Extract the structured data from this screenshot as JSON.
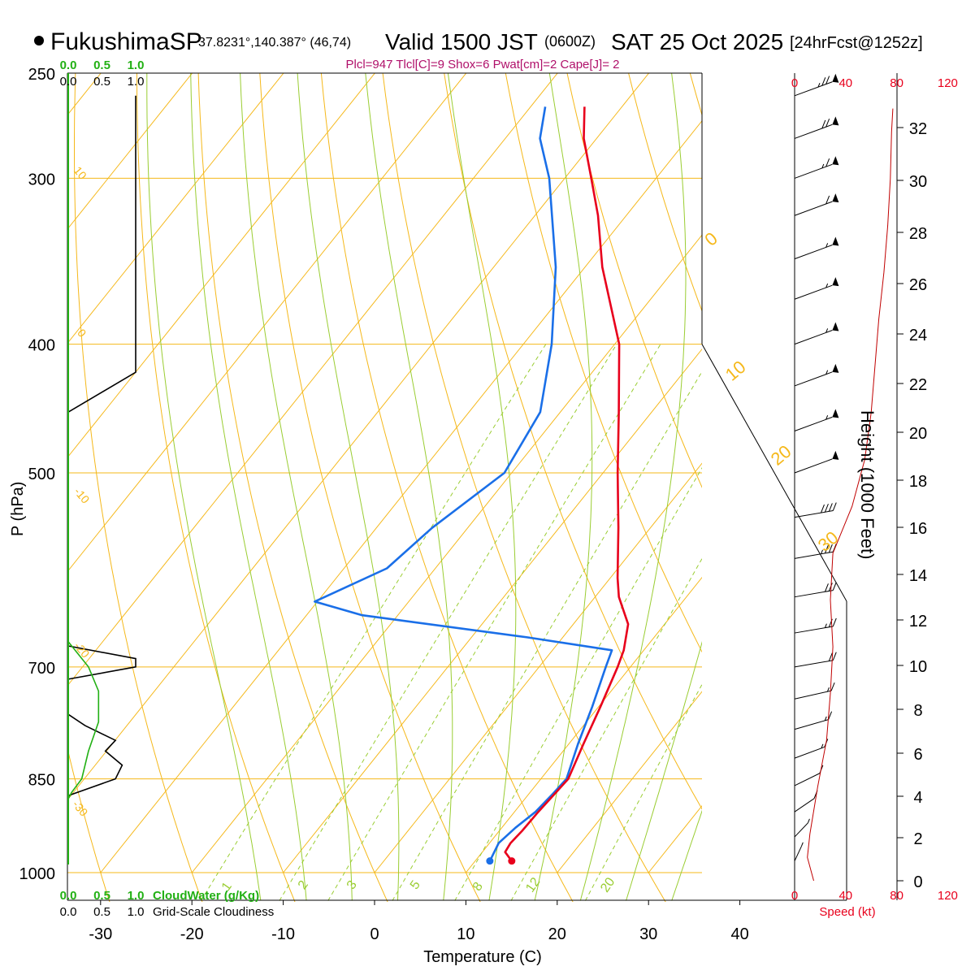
{
  "header": {
    "station": "FukushimaSP",
    "coords": "37.8231°,140.387° (46,74)",
    "valid_label": "Valid 1500 JST",
    "valid_utc": "(0600Z)",
    "date": "SAT 25 Oct 2025",
    "forecast": "[24hrFcst@1252z]",
    "indices": "Plcl=947 Tlcl[C]=9 Shox=6 Pwat[cm]=2 Cape[J]= 2"
  },
  "chart_data": {
    "type": "line",
    "title": "FukushimaSP Valid 1500 JST (0600Z) SAT 25 Oct 2025",
    "xlabel": "Temperature (C)",
    "ylabel": "P (hPa)",
    "right_ylabel": "Height (1000 Feet)",
    "x_ticks": [
      "-30",
      "-20",
      "-10",
      "0",
      "10",
      "20",
      "30",
      "40"
    ],
    "x_tick_values": [
      -30,
      -20,
      -10,
      0,
      10,
      20,
      30,
      40
    ],
    "pressure_ticks": [
      "250",
      "300",
      "400",
      "500",
      "700",
      "850",
      "1000"
    ],
    "pressure_tick_values": [
      250,
      300,
      400,
      500,
      700,
      850,
      1000
    ],
    "height_ticks": [
      "0",
      "2",
      "4",
      "6",
      "8",
      "10",
      "12",
      "14",
      "16",
      "18",
      "20",
      "22",
      "24",
      "26",
      "28",
      "30",
      "32"
    ],
    "speed_ticks": [
      "0",
      "40",
      "80",
      "120"
    ],
    "speed_ticks_bottom": [
      "0",
      "40",
      "80",
      "120"
    ],
    "speed_label": "Speed (kt)",
    "cloud_ticks_green": [
      "0.0",
      "0.5",
      "1.0"
    ],
    "cloud_ticks_black": [
      "0.0",
      "0.5",
      "1.0"
    ],
    "cloudwater_label": "CloudWater (g/Kg)",
    "cloudiness_label": "Grid-Scale Cloudiness",
    "dry_adiabat_labels": [
      "0",
      "10",
      "20",
      "30"
    ],
    "left_isotherm_labels": [
      "10",
      "0",
      "-10",
      "-20",
      "-30"
    ],
    "mixing_ratio_labels": [
      "1",
      "2",
      "3",
      "5",
      "8",
      "12",
      "20"
    ],
    "temperature_profile": [
      {
        "p": 980,
        "t": 14.0
      },
      {
        "p": 965,
        "t": 12.5
      },
      {
        "p": 950,
        "t": 12.3
      },
      {
        "p": 930,
        "t": 12.5
      },
      {
        "p": 900,
        "t": 12.6
      },
      {
        "p": 875,
        "t": 12.8
      },
      {
        "p": 850,
        "t": 13.0
      },
      {
        "p": 800,
        "t": 11.6
      },
      {
        "p": 750,
        "t": 10.2
      },
      {
        "p": 700,
        "t": 8.6
      },
      {
        "p": 680,
        "t": 7.8
      },
      {
        "p": 650,
        "t": 6.0
      },
      {
        "p": 620,
        "t": 2.6
      },
      {
        "p": 600,
        "t": 0.8
      },
      {
        "p": 550,
        "t": -3.5
      },
      {
        "p": 500,
        "t": -8.4
      },
      {
        "p": 450,
        "t": -13.6
      },
      {
        "p": 400,
        "t": -19.5
      },
      {
        "p": 350,
        "t": -28.1
      },
      {
        "p": 320,
        "t": -33.1
      },
      {
        "p": 300,
        "t": -37.1
      },
      {
        "p": 280,
        "t": -41.4
      },
      {
        "p": 265,
        "t": -44.1
      }
    ],
    "dewpoint_profile": [
      {
        "p": 980,
        "t": 11.6
      },
      {
        "p": 950,
        "t": 11.0
      },
      {
        "p": 925,
        "t": 11.5
      },
      {
        "p": 900,
        "t": 12.3
      },
      {
        "p": 875,
        "t": 12.6
      },
      {
        "p": 850,
        "t": 12.8
      },
      {
        "p": 800,
        "t": 11.0
      },
      {
        "p": 750,
        "t": 9.3
      },
      {
        "p": 700,
        "t": 7.3
      },
      {
        "p": 680,
        "t": 6.5
      },
      {
        "p": 665,
        "t": -3.9
      },
      {
        "p": 640,
        "t": -23.9
      },
      {
        "p": 625,
        "t": -30.3
      },
      {
        "p": 590,
        "t": -25.3
      },
      {
        "p": 550,
        "t": -23.9
      },
      {
        "p": 500,
        "t": -20.8
      },
      {
        "p": 450,
        "t": -22.2
      },
      {
        "p": 400,
        "t": -26.9
      },
      {
        "p": 350,
        "t": -33.2
      },
      {
        "p": 300,
        "t": -41.7
      },
      {
        "p": 280,
        "t": -46.2
      },
      {
        "p": 265,
        "t": -48.4
      }
    ],
    "wind_barbs": [
      {
        "p": 260,
        "dir": 255,
        "kt": 75
      },
      {
        "p": 280,
        "dir": 255,
        "kt": 70
      },
      {
        "p": 300,
        "dir": 255,
        "kt": 65
      },
      {
        "p": 320,
        "dir": 255,
        "kt": 60
      },
      {
        "p": 345,
        "dir": 255,
        "kt": 55
      },
      {
        "p": 370,
        "dir": 255,
        "kt": 55
      },
      {
        "p": 400,
        "dir": 255,
        "kt": 55
      },
      {
        "p": 430,
        "dir": 255,
        "kt": 55
      },
      {
        "p": 465,
        "dir": 255,
        "kt": 55
      },
      {
        "p": 500,
        "dir": 255,
        "kt": 50
      },
      {
        "p": 540,
        "dir": 260,
        "kt": 40
      },
      {
        "p": 580,
        "dir": 260,
        "kt": 35
      },
      {
        "p": 620,
        "dir": 260,
        "kt": 30
      },
      {
        "p": 660,
        "dir": 260,
        "kt": 25
      },
      {
        "p": 700,
        "dir": 260,
        "kt": 20
      },
      {
        "p": 740,
        "dir": 250,
        "kt": 15
      },
      {
        "p": 780,
        "dir": 240,
        "kt": 15
      },
      {
        "p": 820,
        "dir": 230,
        "kt": 15
      },
      {
        "p": 860,
        "dir": 220,
        "kt": 10
      },
      {
        "p": 900,
        "dir": 210,
        "kt": 10
      },
      {
        "p": 940,
        "dir": 200,
        "kt": 8
      },
      {
        "p": 980,
        "dir": 190,
        "kt": 5
      }
    ],
    "speed_profile": [
      {
        "h": 0,
        "kt": 15
      },
      {
        "h": 1,
        "kt": 10
      },
      {
        "h": 2,
        "kt": 12
      },
      {
        "h": 4,
        "kt": 18
      },
      {
        "h": 6,
        "kt": 25
      },
      {
        "h": 8,
        "kt": 28
      },
      {
        "h": 10,
        "kt": 30
      },
      {
        "h": 12,
        "kt": 28
      },
      {
        "h": 14,
        "kt": 30
      },
      {
        "h": 16,
        "kt": 45
      },
      {
        "h": 18,
        "kt": 55
      },
      {
        "h": 20,
        "kt": 60
      },
      {
        "h": 22,
        "kt": 63
      },
      {
        "h": 24,
        "kt": 66
      },
      {
        "h": 26,
        "kt": 70
      },
      {
        "h": 28,
        "kt": 73
      },
      {
        "h": 30,
        "kt": 75
      },
      {
        "h": 32,
        "kt": 76
      },
      {
        "h": 33,
        "kt": 77
      }
    ],
    "cloudiness_profile": [
      {
        "p": 260,
        "v": 1.0
      },
      {
        "p": 420,
        "v": 1.0
      },
      {
        "p": 450,
        "v": 0.0
      },
      {
        "p": 675,
        "v": 0.0
      },
      {
        "p": 690,
        "v": 1.0
      },
      {
        "p": 700,
        "v": 1.0
      },
      {
        "p": 715,
        "v": 0.0
      },
      {
        "p": 760,
        "v": 0.0
      },
      {
        "p": 775,
        "v": 0.25
      },
      {
        "p": 795,
        "v": 0.7
      },
      {
        "p": 810,
        "v": 0.55
      },
      {
        "p": 830,
        "v": 0.8
      },
      {
        "p": 850,
        "v": 0.7
      },
      {
        "p": 875,
        "v": 0.0
      }
    ],
    "cloudwater_profile": [
      {
        "p": 670,
        "v": 0.0
      },
      {
        "p": 700,
        "v": 0.3
      },
      {
        "p": 730,
        "v": 0.45
      },
      {
        "p": 770,
        "v": 0.45
      },
      {
        "p": 810,
        "v": 0.3
      },
      {
        "p": 850,
        "v": 0.2
      },
      {
        "p": 870,
        "v": 0.05
      },
      {
        "p": 880,
        "v": 0.0
      }
    ],
    "xlim": [
      -35,
      45
    ],
    "ylim": [
      1000,
      250
    ]
  },
  "colors": {
    "isotherm": "#f5b81a",
    "dry_adiabat": "#f5b81a",
    "moist_adiabat": "#9acd32",
    "temperature": "#e8001c",
    "dewpoint": "#1a6fe8",
    "cloudwater": "#22b014",
    "speed": "#c00000"
  }
}
